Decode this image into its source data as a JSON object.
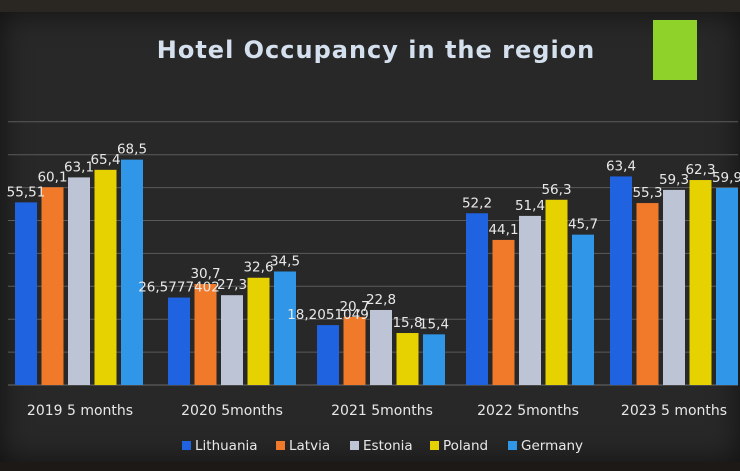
{
  "chart_data": {
    "type": "bar",
    "title": "Hotel Occupancy in the region",
    "categories": [
      "2019 5 months",
      "2020 5months",
      "2021 5months",
      "2022 5months",
      "2023 5 months"
    ],
    "series": [
      {
        "name": "Lithuania",
        "color": "#1f63e0",
        "values": [
          55.51,
          26.5777,
          18.2051,
          52.2,
          63.4
        ],
        "labels": [
          "55,51",
          "26,5777402",
          "18,2051049",
          "52,2",
          "63,4"
        ]
      },
      {
        "name": "Latvia",
        "color": "#f07a2a",
        "values": [
          60.1,
          30.7,
          20.7,
          44.1,
          55.3
        ],
        "labels": [
          "60,1",
          "30,7",
          "20,7",
          "44,1",
          "55,3"
        ]
      },
      {
        "name": "Estonia",
        "color": "#bcc4d6",
        "values": [
          63.1,
          27.3,
          22.8,
          51.4,
          59.3
        ],
        "labels": [
          "63,1",
          "27,3",
          "22,8",
          "51,4",
          "59,3"
        ]
      },
      {
        "name": "Poland",
        "color": "#e6d200",
        "values": [
          65.4,
          32.6,
          15.8,
          56.3,
          62.3
        ],
        "labels": [
          "65,4",
          "32,6",
          "15,8",
          "56,3",
          "62,3"
        ]
      },
      {
        "name": "Germany",
        "color": "#2f96e8",
        "values": [
          68.5,
          34.5,
          15.4,
          45.7,
          59.9
        ],
        "labels": [
          "68,5",
          "34,5",
          "15,4",
          "45,7",
          "59,9"
        ]
      }
    ],
    "ylim": [
      0,
      80
    ],
    "grid": true,
    "legend": "bottom"
  },
  "colors": {
    "accent_square": "#8fd22a",
    "gridline": "#5a5a5a"
  }
}
